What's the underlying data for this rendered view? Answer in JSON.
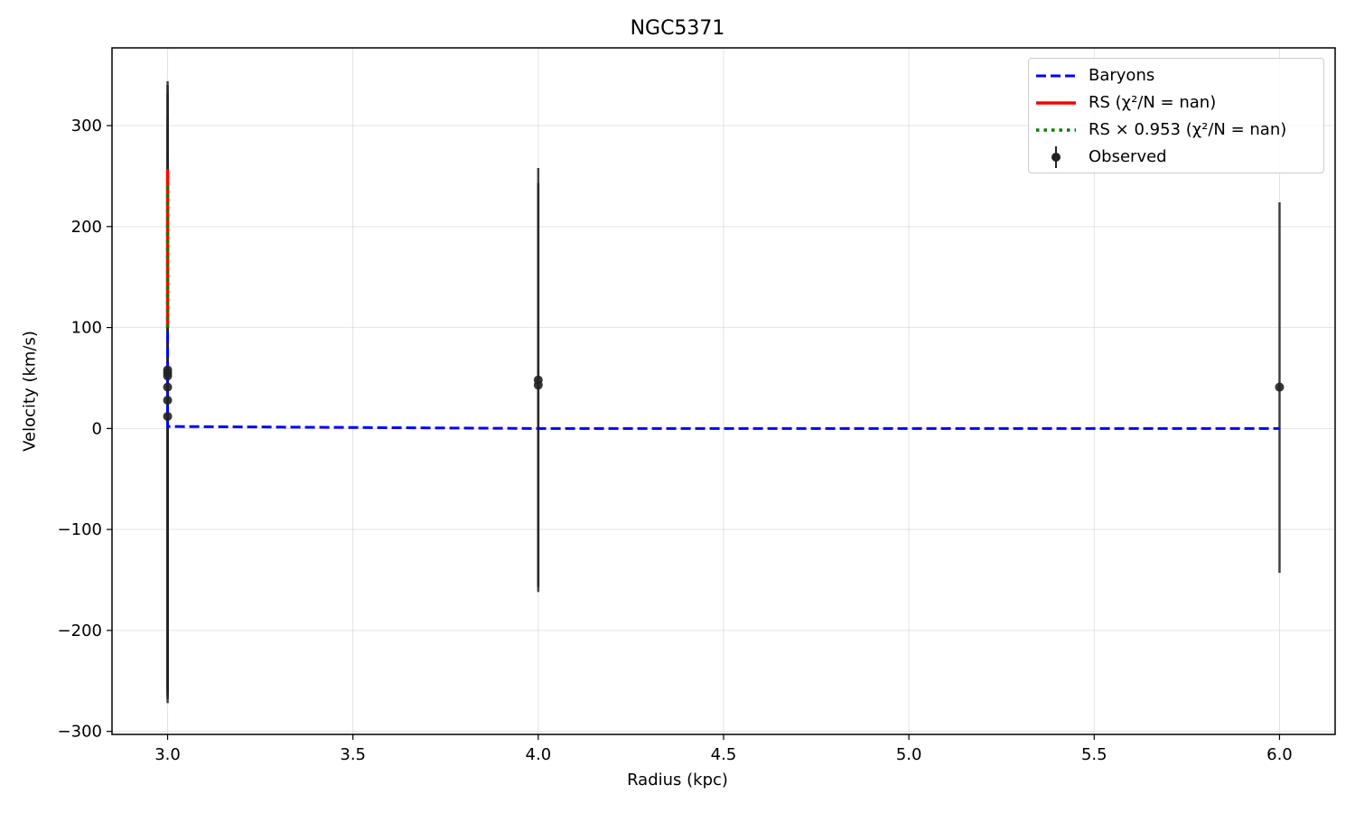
{
  "chart_data": {
    "type": "line",
    "title": "NGC5371",
    "xlabel": "Radius (kpc)",
    "ylabel": "Velocity (km/s)",
    "xlim": [
      2.85,
      6.15
    ],
    "ylim": [
      -303,
      377
    ],
    "xticks": [
      3.0,
      3.5,
      4.0,
      4.5,
      5.0,
      5.5,
      6.0
    ],
    "xtick_labels": [
      "3.0",
      "3.5",
      "4.0",
      "4.5",
      "5.0",
      "5.5",
      "6.0"
    ],
    "yticks": [
      -300,
      -200,
      -100,
      0,
      100,
      200,
      300
    ],
    "ytick_labels": [
      "−300",
      "−200",
      "−100",
      "0",
      "100",
      "200",
      "300"
    ],
    "grid": true,
    "legend_position": "top-right",
    "series": [
      {
        "name": "Baryons",
        "style": "dashed",
        "color": "#0000ff",
        "x": [
          3.0,
          3.0,
          3.0,
          3.0,
          4.0,
          6.0
        ],
        "y": [
          95,
          60,
          20,
          2,
          0,
          0
        ]
      },
      {
        "name": "RS (χ²/N = nan)",
        "style": "solid",
        "color": "#ff0000",
        "x": [
          3.0,
          3.0
        ],
        "y": [
          100,
          257
        ]
      },
      {
        "name": "RS × 0.953 (χ²/N = nan)",
        "style": "dotted",
        "color": "#008000",
        "x": [
          3.0,
          3.0
        ],
        "y": [
          100,
          245
        ]
      },
      {
        "name": "Observed",
        "style": "errorbar",
        "color": "#000000",
        "points": [
          {
            "x": 3.0,
            "y": 58,
            "err_low": 330,
            "err_high": 286
          },
          {
            "x": 3.0,
            "y": 55,
            "err_low": 320,
            "err_high": 285
          },
          {
            "x": 3.0,
            "y": 52,
            "err_low": 310,
            "err_high": 280
          },
          {
            "x": 3.0,
            "y": 41,
            "err_low": 300,
            "err_high": 270
          },
          {
            "x": 3.0,
            "y": 28,
            "err_low": 290,
            "err_high": 270
          },
          {
            "x": 3.0,
            "y": 12,
            "err_low": 280,
            "err_high": 260
          },
          {
            "x": 4.0,
            "y": 48,
            "err_low": 210,
            "err_high": 210
          },
          {
            "x": 4.0,
            "y": 43,
            "err_low": 200,
            "err_high": 200
          },
          {
            "x": 6.0,
            "y": 41,
            "err_low": 184,
            "err_high": 183
          }
        ]
      }
    ]
  }
}
